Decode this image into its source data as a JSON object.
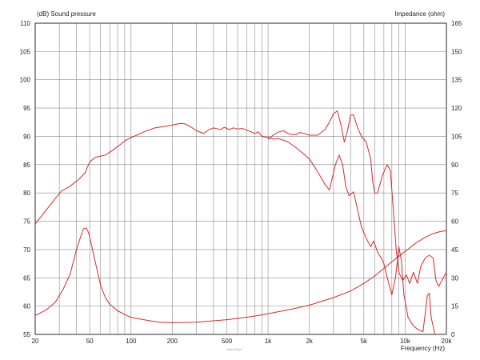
{
  "chart_data": {
    "type": "line",
    "ylabel_left": "(dB)  Sound pressure",
    "ylabel_right": "Impedance  (ohm)",
    "xlabel": "Frequency  (Hz)",
    "x_scale": "log",
    "xlim": [
      20,
      20000
    ],
    "ylim_left": [
      55,
      110
    ],
    "ylim_right": [
      0,
      165
    ],
    "grid": true,
    "x_tick_values": [
      20,
      50,
      100,
      200,
      500,
      1000,
      2000,
      5000,
      10000,
      20000
    ],
    "x_tick_labels": [
      "20",
      "50",
      "100",
      "200",
      "500",
      "1k",
      "2k",
      "5k",
      "10k",
      "20k"
    ],
    "y_left_ticks": [
      "110",
      "105",
      "100",
      "95",
      "90",
      "85",
      "80",
      "75",
      "70",
      "65",
      "60",
      "55"
    ],
    "y_right_ticks": [
      "165",
      "150",
      "135",
      "120",
      "105",
      "90",
      "75",
      "60",
      "45",
      "30",
      "15",
      "0"
    ],
    "series": [
      {
        "axis": "left",
        "color": "#d02b2b",
        "points": [
          [
            20,
            74.5
          ],
          [
            22,
            75.8
          ],
          [
            25,
            77.5
          ],
          [
            28,
            79
          ],
          [
            31,
            80.3
          ],
          [
            36,
            81.2
          ],
          [
            42,
            82.5
          ],
          [
            46,
            83.5
          ],
          [
            50,
            85.5
          ],
          [
            55,
            86.3
          ],
          [
            60,
            86.5
          ],
          [
            65,
            86.7
          ],
          [
            70,
            87.2
          ],
          [
            80,
            88.2
          ],
          [
            90,
            89.2
          ],
          [
            100,
            89.8
          ],
          [
            110,
            90.2
          ],
          [
            130,
            91
          ],
          [
            150,
            91.5
          ],
          [
            180,
            91.8
          ],
          [
            200,
            92
          ],
          [
            230,
            92.3
          ],
          [
            250,
            92.2
          ],
          [
            280,
            91.5
          ],
          [
            300,
            91
          ],
          [
            340,
            90.5
          ],
          [
            370,
            91.2
          ],
          [
            400,
            91.5
          ],
          [
            450,
            91.2
          ],
          [
            480,
            91.6
          ],
          [
            520,
            91.2
          ],
          [
            560,
            91.5
          ],
          [
            600,
            91.3
          ],
          [
            650,
            91.4
          ],
          [
            700,
            91.1
          ],
          [
            750,
            90.8
          ],
          [
            800,
            90.5
          ],
          [
            850,
            90.8
          ],
          [
            900,
            90
          ],
          [
            1000,
            89.8
          ],
          [
            1100,
            89.5
          ],
          [
            1200,
            89.6
          ],
          [
            1400,
            89
          ],
          [
            1600,
            88
          ],
          [
            1800,
            87
          ],
          [
            2000,
            86
          ],
          [
            2200,
            84.5
          ],
          [
            2400,
            83
          ],
          [
            2600,
            81.5
          ],
          [
            2800,
            80.5
          ],
          [
            2900,
            82
          ],
          [
            3100,
            85
          ],
          [
            3300,
            86.7
          ],
          [
            3500,
            85
          ],
          [
            3700,
            81
          ],
          [
            3900,
            79.5
          ],
          [
            4200,
            80.2
          ],
          [
            4500,
            77
          ],
          [
            4800,
            74
          ],
          [
            5200,
            72
          ],
          [
            5600,
            70.5
          ],
          [
            5900,
            71.5
          ],
          [
            6300,
            69.5
          ],
          [
            6700,
            68.5
          ],
          [
            7000,
            67.5
          ],
          [
            7500,
            64.5
          ],
          [
            8000,
            62
          ],
          [
            8500,
            65
          ],
          [
            9000,
            70.5
          ],
          [
            9400,
            68
          ],
          [
            9800,
            62
          ],
          [
            10500,
            58
          ],
          [
            11500,
            56.5
          ],
          [
            12500,
            55.8
          ],
          [
            13500,
            55.5
          ],
          [
            14500,
            61.8
          ],
          [
            15000,
            62.3
          ],
          [
            15500,
            58
          ],
          [
            16500,
            55
          ]
        ]
      },
      {
        "axis": "left",
        "color": "#d02b2b",
        "points": [
          [
            1000,
            89.5
          ],
          [
            1100,
            90.3
          ],
          [
            1200,
            90.8
          ],
          [
            1300,
            91
          ],
          [
            1400,
            90.5
          ],
          [
            1500,
            90.3
          ],
          [
            1600,
            90.3
          ],
          [
            1700,
            90.7
          ],
          [
            1900,
            90.4
          ],
          [
            2000,
            90.2
          ],
          [
            2300,
            90.2
          ],
          [
            2600,
            91.2
          ],
          [
            2800,
            92.5
          ],
          [
            3000,
            94
          ],
          [
            3200,
            94.5
          ],
          [
            3400,
            92
          ],
          [
            3600,
            89
          ],
          [
            3800,
            91
          ],
          [
            4000,
            93.8
          ],
          [
            4200,
            93.8
          ],
          [
            4500,
            91.5
          ],
          [
            4800,
            90
          ],
          [
            5200,
            89
          ],
          [
            5600,
            86
          ],
          [
            5800,
            82
          ],
          [
            6000,
            80
          ],
          [
            6300,
            80
          ],
          [
            6800,
            83
          ],
          [
            7400,
            85
          ],
          [
            7800,
            84
          ],
          [
            8200,
            77
          ],
          [
            8600,
            70
          ],
          [
            9000,
            66
          ],
          [
            9600,
            64.5
          ],
          [
            10200,
            65.5
          ],
          [
            10800,
            64
          ],
          [
            11500,
            66
          ],
          [
            12300,
            64
          ],
          [
            13000,
            67
          ],
          [
            14000,
            68.5
          ],
          [
            15000,
            69
          ],
          [
            16000,
            68.5
          ],
          [
            16800,
            64.5
          ],
          [
            17600,
            63.5
          ],
          [
            18500,
            64.5
          ],
          [
            20000,
            66
          ]
        ]
      },
      {
        "axis": "right",
        "color": "#d02b2b",
        "points": [
          [
            20,
            10
          ],
          [
            24,
            13
          ],
          [
            28,
            17
          ],
          [
            32,
            24
          ],
          [
            36,
            32
          ],
          [
            40,
            45
          ],
          [
            43,
            52
          ],
          [
            45,
            56
          ],
          [
            47,
            56.5
          ],
          [
            49,
            54
          ],
          [
            52,
            46
          ],
          [
            55,
            38
          ],
          [
            60,
            26
          ],
          [
            65,
            19.5
          ],
          [
            70,
            16
          ],
          [
            80,
            12.5
          ],
          [
            90,
            10.5
          ],
          [
            100,
            9
          ],
          [
            130,
            7.5
          ],
          [
            160,
            6.5
          ],
          [
            200,
            6.2
          ],
          [
            300,
            6.5
          ],
          [
            400,
            7.2
          ],
          [
            500,
            7.8
          ],
          [
            600,
            8.5
          ],
          [
            800,
            9.7
          ],
          [
            1000,
            11
          ],
          [
            1500,
            13.5
          ],
          [
            2000,
            15.5
          ],
          [
            3000,
            19.5
          ],
          [
            4000,
            23
          ],
          [
            5000,
            27
          ],
          [
            6000,
            31
          ],
          [
            7000,
            35
          ],
          [
            8000,
            38.5
          ],
          [
            10000,
            44
          ],
          [
            12000,
            48.5
          ],
          [
            14000,
            51.5
          ],
          [
            16000,
            53.5
          ],
          [
            18000,
            54.5
          ],
          [
            20000,
            55
          ]
        ]
      }
    ]
  },
  "watermark": "www.hifi.pl",
  "style": {
    "curve_color": "#d02b2b",
    "grid_color": "#8a8a8a",
    "frame_color": "#2a2a2a"
  }
}
